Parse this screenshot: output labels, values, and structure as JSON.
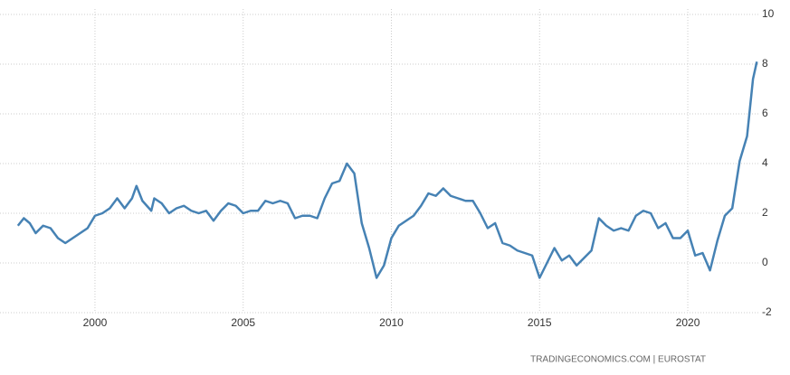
{
  "chart_data": {
    "type": "line",
    "source": "TRADINGECONOMICS.COM | EUROSTAT",
    "x": [
      1997.4,
      1997.6,
      1997.8,
      1998.0,
      1998.25,
      1998.5,
      1998.75,
      1999.0,
      1999.25,
      1999.5,
      1999.75,
      2000.0,
      2000.25,
      2000.5,
      2000.75,
      2001.0,
      2001.25,
      2001.4,
      2001.6,
      2001.9,
      2002.0,
      2002.25,
      2002.5,
      2002.75,
      2003.0,
      2003.25,
      2003.5,
      2003.75,
      2004.0,
      2004.25,
      2004.5,
      2004.75,
      2005.0,
      2005.25,
      2005.5,
      2005.75,
      2006.0,
      2006.25,
      2006.5,
      2006.75,
      2007.0,
      2007.25,
      2007.5,
      2007.75,
      2008.0,
      2008.25,
      2008.5,
      2008.75,
      2009.0,
      2009.25,
      2009.5,
      2009.75,
      2010.0,
      2010.25,
      2010.5,
      2010.75,
      2011.0,
      2011.25,
      2011.5,
      2011.75,
      2012.0,
      2012.25,
      2012.5,
      2012.75,
      2013.0,
      2013.25,
      2013.5,
      2013.75,
      2014.0,
      2014.25,
      2014.5,
      2014.75,
      2015.0,
      2015.25,
      2015.5,
      2015.75,
      2016.0,
      2016.25,
      2016.5,
      2016.75,
      2017.0,
      2017.25,
      2017.5,
      2017.75,
      2018.0,
      2018.25,
      2018.5,
      2018.75,
      2019.0,
      2019.25,
      2019.5,
      2019.75,
      2020.0,
      2020.25,
      2020.5,
      2020.75,
      2021.0,
      2021.25,
      2021.5,
      2021.75,
      2022.0,
      2022.2,
      2022.33
    ],
    "series": [
      {
        "color": "#4682b4",
        "values": [
          1.5,
          1.8,
          1.6,
          1.2,
          1.5,
          1.4,
          1.0,
          0.8,
          1.0,
          1.2,
          1.4,
          1.9,
          2.0,
          2.2,
          2.6,
          2.2,
          2.6,
          3.1,
          2.5,
          2.1,
          2.6,
          2.4,
          2.0,
          2.2,
          2.3,
          2.1,
          2.0,
          2.1,
          1.7,
          2.1,
          2.4,
          2.3,
          2.0,
          2.1,
          2.1,
          2.5,
          2.4,
          2.5,
          2.4,
          1.8,
          1.9,
          1.9,
          1.8,
          2.6,
          3.2,
          3.3,
          4.0,
          3.6,
          1.6,
          0.6,
          -0.6,
          -0.1,
          1.0,
          1.5,
          1.7,
          1.9,
          2.3,
          2.8,
          2.7,
          3.0,
          2.7,
          2.6,
          2.5,
          2.5,
          2.0,
          1.4,
          1.6,
          0.8,
          0.7,
          0.5,
          0.4,
          0.3,
          -0.6,
          0.0,
          0.6,
          0.1,
          0.3,
          -0.1,
          0.2,
          0.5,
          1.8,
          1.5,
          1.3,
          1.4,
          1.3,
          1.9,
          2.1,
          2.0,
          1.4,
          1.6,
          1.0,
          1.0,
          1.3,
          0.3,
          0.4,
          -0.3,
          0.9,
          1.9,
          2.2,
          4.1,
          5.1,
          7.4,
          8.1
        ]
      }
    ],
    "xlim": [
      1997.04,
      2022.38
    ],
    "xticks": [
      2000,
      2005,
      2010,
      2015,
      2020
    ],
    "ylim": [
      -2,
      10
    ],
    "yticks": [
      -2,
      0,
      2,
      4,
      6,
      8,
      10
    ],
    "grid": true
  }
}
